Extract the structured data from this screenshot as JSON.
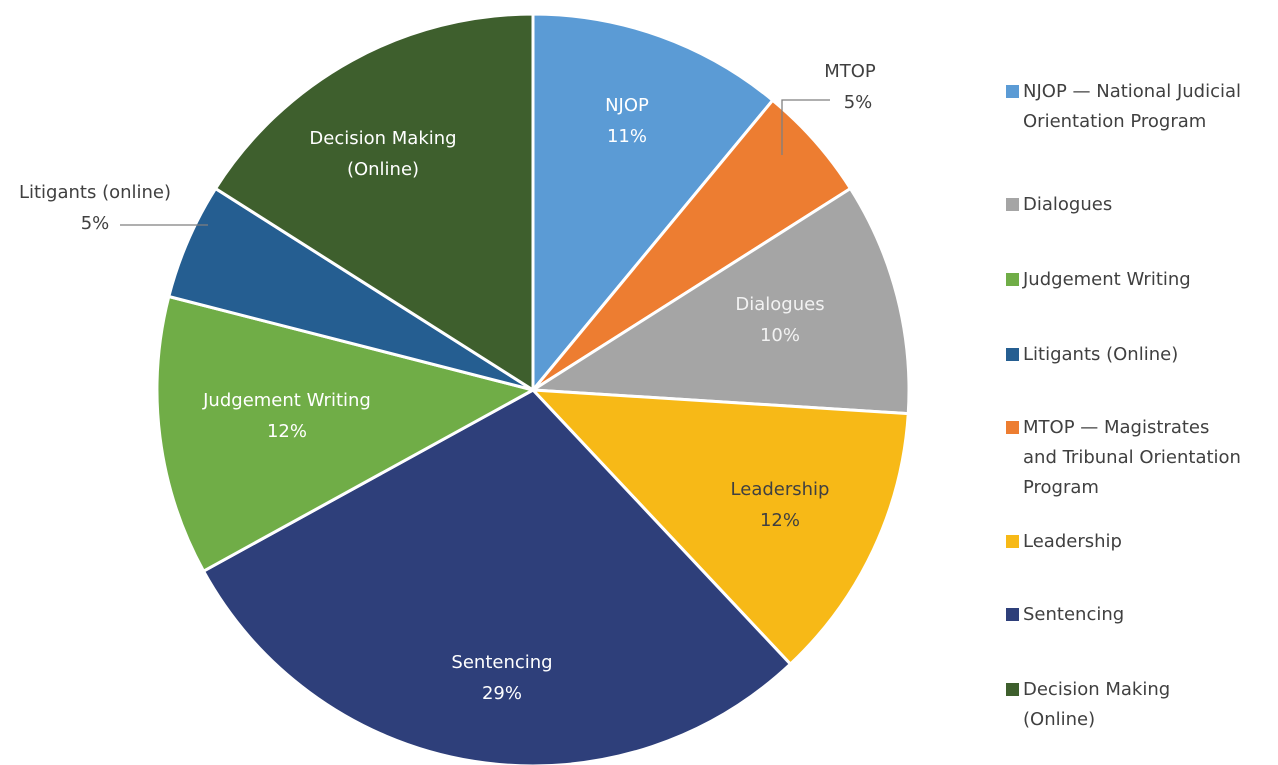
{
  "chart_data": {
    "type": "pie",
    "slices": [
      {
        "label": [
          "NJOP"
        ],
        "value": 11,
        "value_label": "11%",
        "color": "#5b9bd5"
      },
      {
        "label": [
          "MTOP"
        ],
        "value": 5,
        "value_label": "5%",
        "color": "#ed7d31"
      },
      {
        "label": [
          "Dialogues"
        ],
        "value": 10,
        "value_label": "10%",
        "color": "#a5a5a5"
      },
      {
        "label": [
          "Leadership"
        ],
        "value": 12,
        "value_label": "12%",
        "color": "#f7b917"
      },
      {
        "label": [
          "Sentencing"
        ],
        "value": 29,
        "value_label": "29%",
        "color": "#2e3f7a"
      },
      {
        "label": [
          "Judgement Writing"
        ],
        "value": 12,
        "value_label": "12%",
        "color": "#70ad47"
      },
      {
        "label": [
          "Litigants (online)"
        ],
        "value": 5,
        "value_label": "5%",
        "color": "#255e91"
      },
      {
        "label": [
          "Decision Making",
          "(Online)"
        ],
        "value": 16,
        "value_label": null,
        "color": "#3e5f2d"
      }
    ],
    "legend": [
      {
        "name": "NJOP — National Judicial Orientation Program",
        "color": "#5b9bd5"
      },
      {
        "name": "Dialogues",
        "color": "#a5a5a5"
      },
      {
        "name": "Judgement Writing",
        "color": "#70ad47"
      },
      {
        "name": "Litigants (Online)",
        "color": "#255e91"
      },
      {
        "name": "MTOP — Magistrates and Tribunal Orientation Program",
        "color": "#ed7d31"
      },
      {
        "name": "Leadership",
        "color": "#f7b917"
      },
      {
        "name": "Sentencing",
        "color": "#2e3f7a"
      },
      {
        "name": "Decision Making (Online)",
        "color": "#3e5f2d"
      }
    ]
  }
}
